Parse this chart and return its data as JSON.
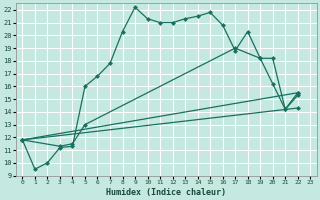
{
  "xlabel": "Humidex (Indice chaleur)",
  "background_color": "#c5e8e0",
  "grid_color": "#ffffff",
  "line_color": "#1a7060",
  "xlim": [
    -0.5,
    23.5
  ],
  "ylim": [
    9,
    22.5
  ],
  "xticks": [
    0,
    1,
    2,
    3,
    4,
    5,
    6,
    7,
    8,
    9,
    10,
    11,
    12,
    13,
    14,
    15,
    16,
    17,
    18,
    19,
    20,
    21,
    22,
    23
  ],
  "yticks": [
    9,
    10,
    11,
    12,
    13,
    14,
    15,
    16,
    17,
    18,
    19,
    20,
    21,
    22
  ],
  "series1_x": [
    0,
    1,
    2,
    3,
    4,
    5,
    6,
    7,
    8,
    9,
    10,
    11,
    12,
    13,
    14,
    15,
    16,
    17,
    18,
    19,
    20,
    21,
    22
  ],
  "series1_y": [
    11.8,
    9.5,
    10.0,
    11.2,
    11.3,
    16.0,
    16.8,
    17.8,
    20.3,
    22.2,
    21.3,
    21.0,
    21.0,
    21.3,
    21.5,
    21.8,
    20.8,
    18.8,
    20.3,
    18.2,
    16.2,
    14.2,
    15.3
  ],
  "series2_x": [
    0,
    3,
    4,
    5,
    17,
    19,
    20,
    21,
    22
  ],
  "series2_y": [
    11.8,
    11.3,
    11.5,
    13.0,
    19.0,
    18.2,
    18.2,
    14.2,
    15.5
  ],
  "series3_x": [
    0,
    22
  ],
  "series3_y": [
    11.8,
    15.5
  ],
  "series4_x": [
    0,
    22
  ],
  "series4_y": [
    11.8,
    14.3
  ]
}
